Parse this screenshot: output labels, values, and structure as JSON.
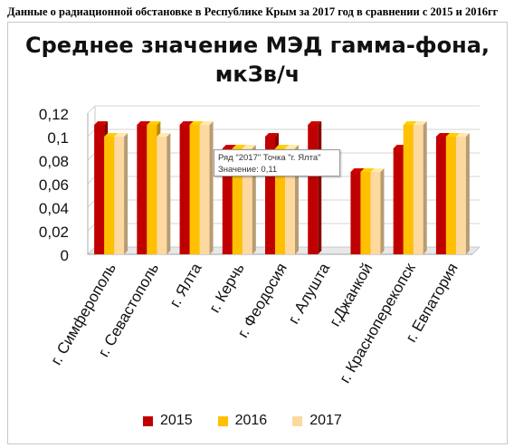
{
  "header": {
    "caption": "Данные о радиационной обстановке в Республике Крым за 2017 год в сравнении с 2015 и 2016гг"
  },
  "chart_data": {
    "type": "bar",
    "title_line1": "Среднее значение МЭД гамма-фона,",
    "title_line2": "мкЗв/ч",
    "categories": [
      "г. Симферополь",
      "г. Севастополь",
      "г. Ялта",
      "г. Керчь",
      "г. Феодосия",
      "г. Алушта",
      "г.Джанкой",
      "г. Красноперекопск",
      "г. Евпатория"
    ],
    "series": [
      {
        "name": "2015",
        "color": "#c00000",
        "values": [
          0.11,
          0.11,
          0.11,
          0.09,
          0.1,
          0.11,
          0.07,
          0.09,
          0.1
        ]
      },
      {
        "name": "2016",
        "color": "#ffc000",
        "values": [
          0.1,
          0.11,
          0.11,
          0.09,
          0.09,
          null,
          0.07,
          0.11,
          0.1
        ]
      },
      {
        "name": "2017",
        "color": "#fdd9a0",
        "values": [
          0.1,
          0.1,
          0.11,
          0.09,
          0.09,
          null,
          0.07,
          0.11,
          0.1
        ]
      }
    ],
    "ylim": [
      0,
      0.12
    ],
    "yticks": [
      "0",
      "0,02",
      "0,04",
      "0,06",
      "0,08",
      "0,1",
      "0,12"
    ],
    "grid": true,
    "legend_position": "bottom"
  },
  "tooltip": {
    "line1": "Ряд \"2017\" Точка \"г. Ялта\"",
    "line2": "Значение: 0,11"
  }
}
